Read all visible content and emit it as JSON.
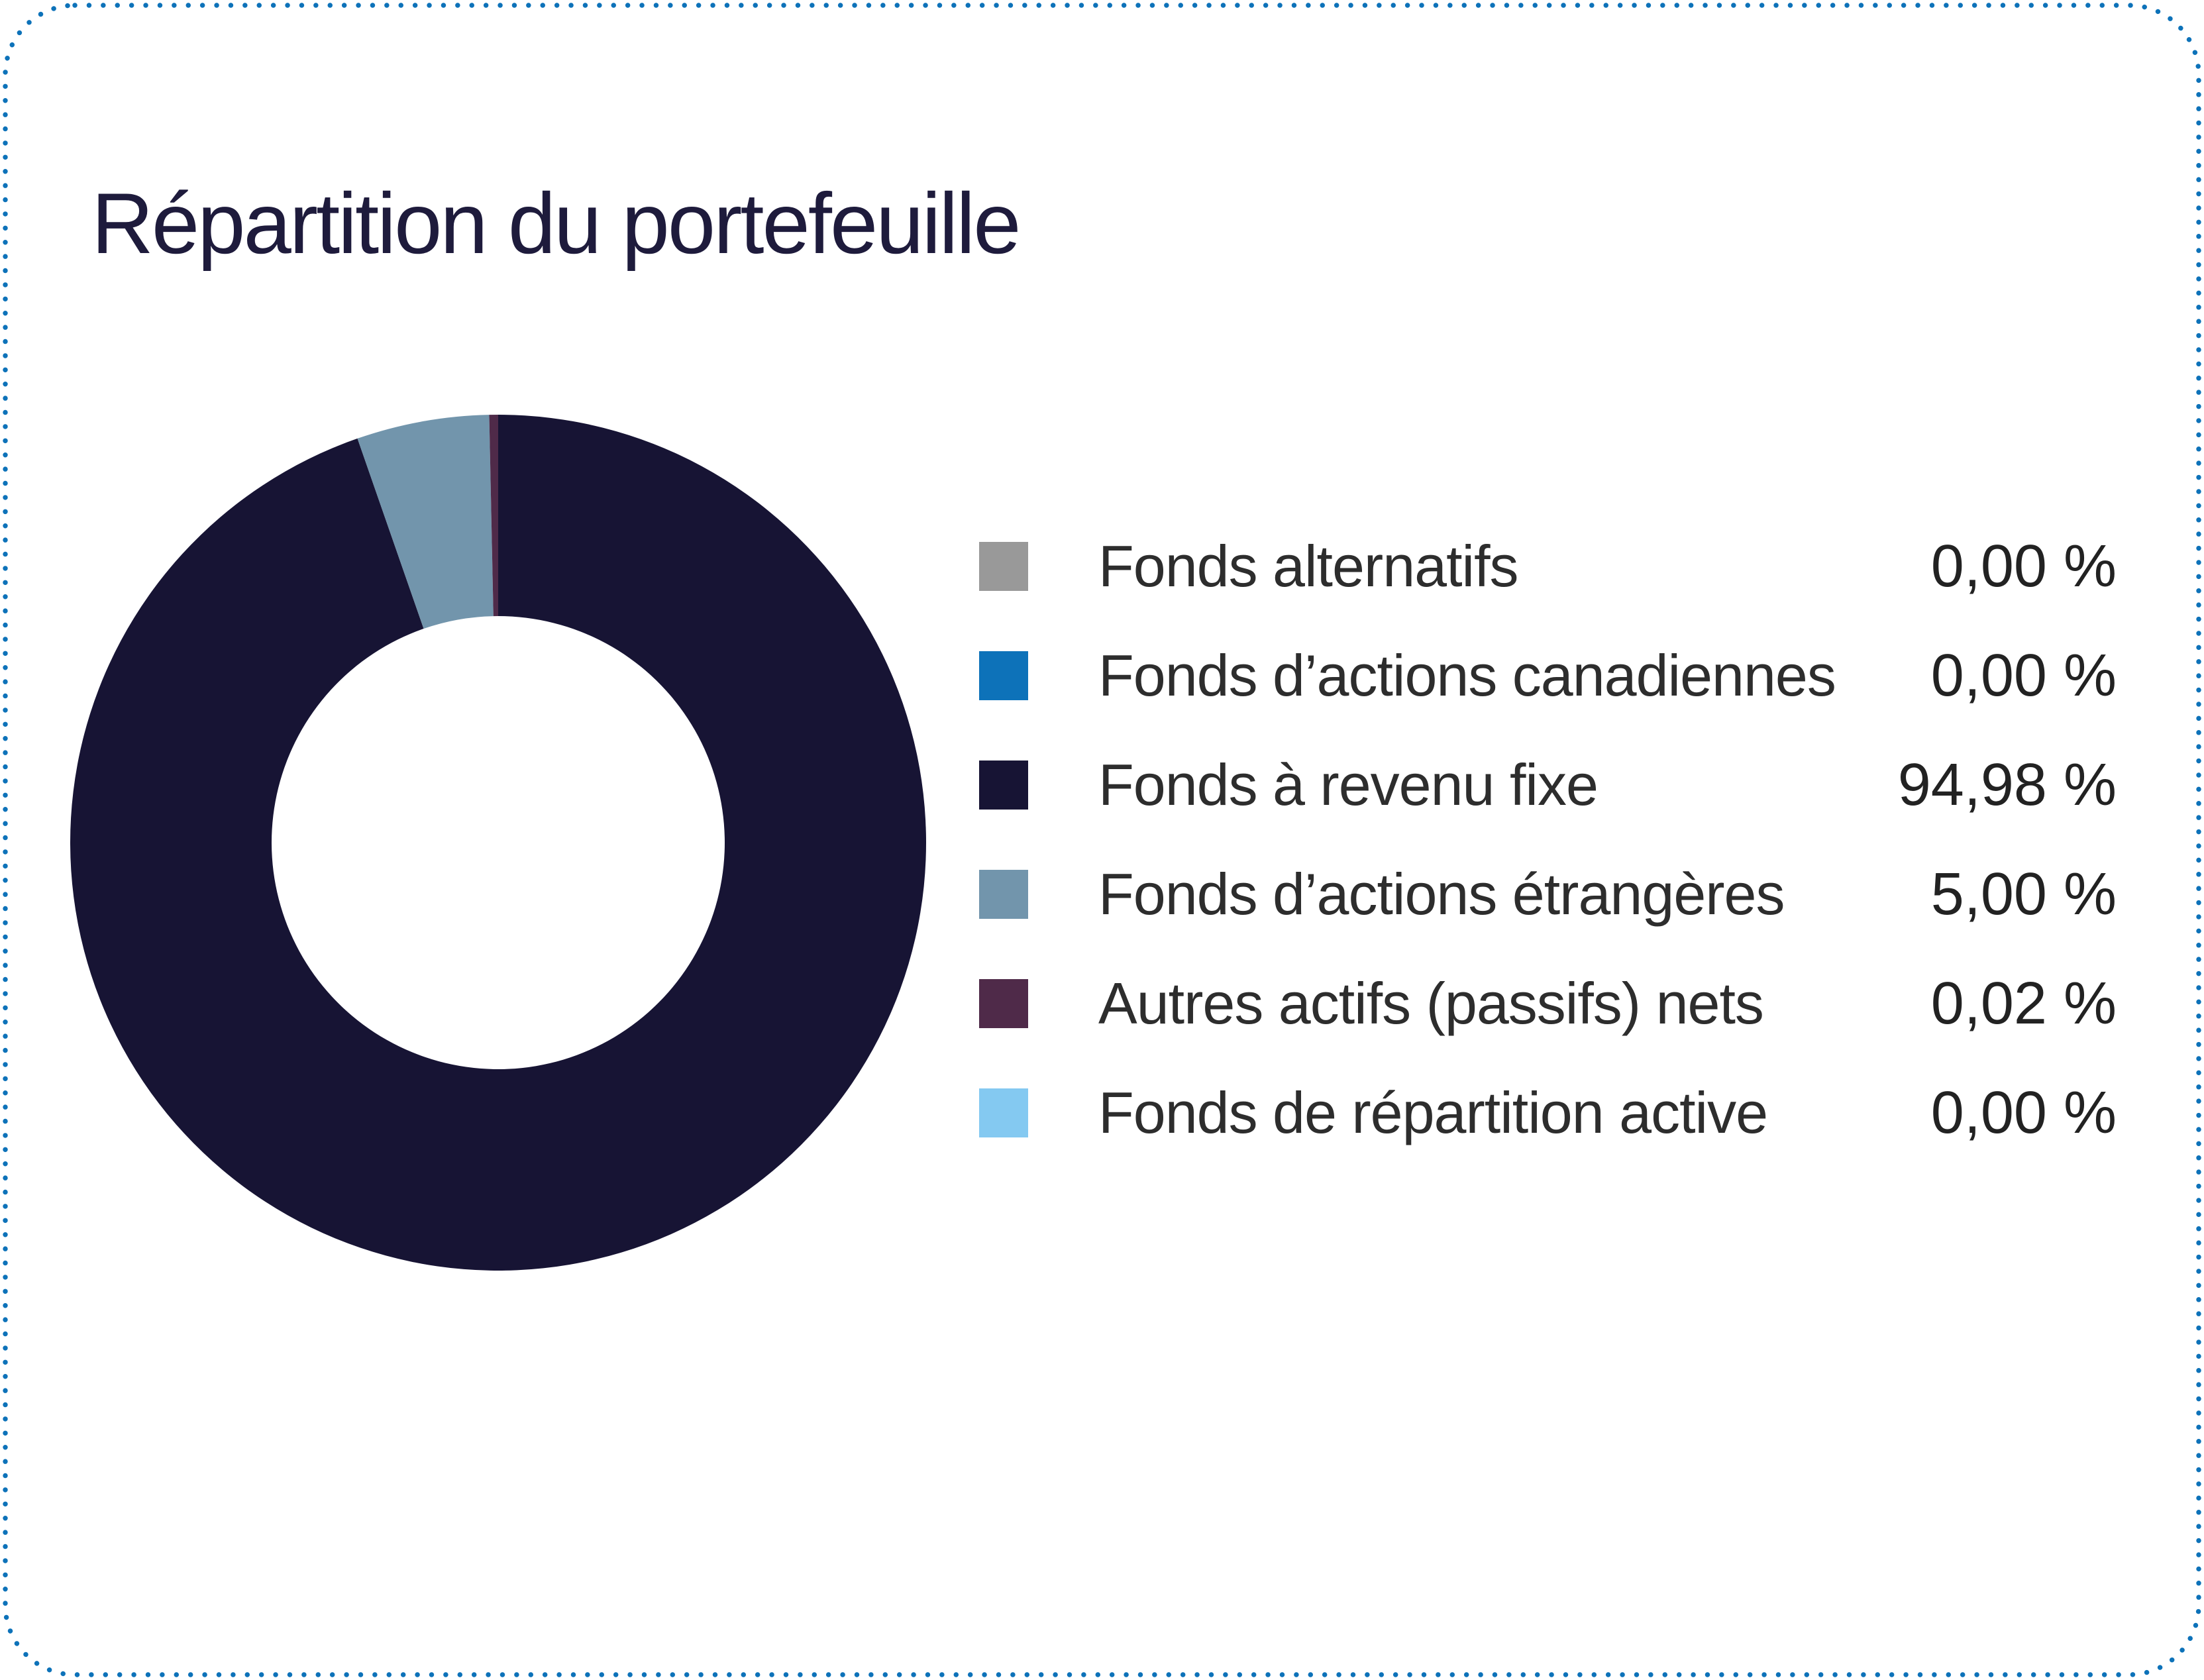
{
  "card": {
    "background_color": "#ffffff",
    "border_color": "#0d72b9",
    "border_style": "dotted"
  },
  "chart_data": {
    "type": "pie",
    "subtype": "donut",
    "title": "Répartition du portefeuille",
    "title_color": "#1e1b3c",
    "legend_position": "right",
    "inner_radius_ratio": 0.53,
    "decimal_separator": ",",
    "value_suffix": "%",
    "series": [
      {
        "label": "Fonds alternatifs",
        "value": 0.0,
        "display": "0,00 %",
        "color": "#999999"
      },
      {
        "label": "Fonds d’actions canadiennes",
        "value": 0.0,
        "display": "0,00 %",
        "color": "#0d72b9"
      },
      {
        "label": "Fonds à revenu fixe",
        "value": 94.98,
        "display": "94,98 %",
        "color": "#171434"
      },
      {
        "label": "Fonds d’actions étrangères",
        "value": 5.0,
        "display": "5,00 %",
        "color": "#7295ac"
      },
      {
        "label": "Autres actifs (passifs) nets",
        "value": 0.02,
        "display": "0,02 %",
        "color": "#4f2a49"
      },
      {
        "label": "Fonds de répartition active",
        "value": 0.0,
        "display": "0,00 %",
        "color": "#84c9f1"
      }
    ]
  }
}
